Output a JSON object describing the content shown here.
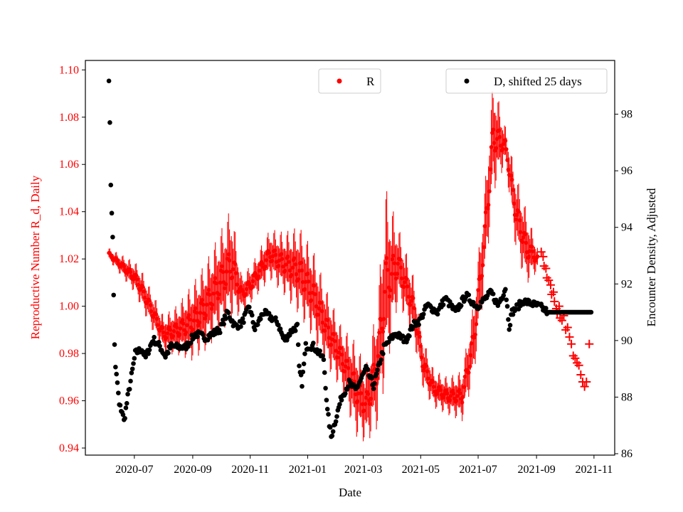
{
  "chart_data": {
    "type": "scatter",
    "xlabel": "Date",
    "ylabel_left": "Reproductive Number R_d, Daily",
    "ylabel_right": "Encounter Density, Adjusted",
    "x_origin": "2020-07-01",
    "x_units": "days since x_origin",
    "xlim_days": [
      -52,
      510
    ],
    "ylim_left": [
      0.937,
      1.104
    ],
    "ylim_right": [
      85.95,
      99.9
    ],
    "x_ticks": [
      {
        "label": "2020-07",
        "day": 0
      },
      {
        "label": "2020-09",
        "day": 62
      },
      {
        "label": "2020-11",
        "day": 123
      },
      {
        "label": "2021-01",
        "day": 184
      },
      {
        "label": "2021-03",
        "day": 243
      },
      {
        "label": "2021-05",
        "day": 304
      },
      {
        "label": "2021-07",
        "day": 365
      },
      {
        "label": "2021-09",
        "day": 427
      },
      {
        "label": "2021-11",
        "day": 488
      }
    ],
    "y_ticks_left": [
      "0.94",
      "0.96",
      "0.98",
      "1.00",
      "1.02",
      "1.04",
      "1.06",
      "1.08",
      "1.10"
    ],
    "y_ticks_right": [
      "86",
      "88",
      "90",
      "92",
      "94",
      "96",
      "98"
    ],
    "colors": {
      "R": "#ff0000",
      "D": "#000000",
      "left_axis": "#ff0000"
    },
    "legend": [
      {
        "label": "R",
        "position": "upper-center"
      },
      {
        "label": "D, shifted 25 days",
        "position": "upper-right"
      }
    ],
    "series_R": {
      "name": "R",
      "keypoints_day_value_halfwidth": [
        [
          -27,
          1.022,
          0.002
        ],
        [
          1,
          1.012,
          0.005
        ],
        [
          8,
          1.007,
          0.006
        ],
        [
          31,
          0.988,
          0.006
        ],
        [
          46,
          0.99,
          0.008
        ],
        [
          61,
          0.993,
          0.012
        ],
        [
          76,
          1.0,
          0.014
        ],
        [
          91,
          1.01,
          0.016
        ],
        [
          103,
          1.018,
          0.018
        ],
        [
          114,
          1.005,
          0.006
        ],
        [
          125,
          1.01,
          0.006
        ],
        [
          144,
          1.022,
          0.008
        ],
        [
          159,
          1.018,
          0.01
        ],
        [
          175,
          1.015,
          0.014
        ],
        [
          190,
          1.005,
          0.014
        ],
        [
          205,
          0.99,
          0.012
        ],
        [
          220,
          0.978,
          0.01
        ],
        [
          235,
          0.965,
          0.015
        ],
        [
          246,
          0.958,
          0.012
        ],
        [
          258,
          0.975,
          0.02
        ],
        [
          267,
          1.01,
          0.03
        ],
        [
          280,
          1.018,
          0.012
        ],
        [
          296,
          1.0,
          0.01
        ],
        [
          307,
          0.975,
          0.008
        ],
        [
          318,
          0.965,
          0.006
        ],
        [
          333,
          0.962,
          0.006
        ],
        [
          348,
          0.962,
          0.008
        ],
        [
          360,
          0.985,
          0.012
        ],
        [
          371,
          1.025,
          0.015
        ],
        [
          381,
          1.072,
          0.018
        ],
        [
          394,
          1.068,
          0.006
        ],
        [
          405,
          1.04,
          0.012
        ],
        [
          416,
          1.025,
          0.012
        ],
        [
          428,
          1.02,
          0.004
        ]
      ],
      "forecast_points_day_value": [
        [
          432,
          1.023
        ],
        [
          434,
          1.021
        ],
        [
          435,
          1.017
        ],
        [
          437,
          1.016
        ],
        [
          438,
          1.012
        ],
        [
          440,
          1.011
        ],
        [
          442,
          1.009
        ],
        [
          443,
          1.005
        ],
        [
          445,
          1.006
        ],
        [
          446,
          1.002
        ],
        [
          448,
          0.999
        ],
        [
          449,
          0.997
        ],
        [
          451,
          1.0
        ],
        [
          452,
          0.995
        ],
        [
          454,
          0.994
        ],
        [
          456,
          0.996
        ],
        [
          458,
          0.99
        ],
        [
          460,
          0.991
        ],
        [
          462,
          0.987
        ],
        [
          464,
          0.984
        ],
        [
          466,
          0.979
        ],
        [
          468,
          0.978
        ],
        [
          470,
          0.976
        ],
        [
          472,
          0.975
        ],
        [
          474,
          0.971
        ],
        [
          476,
          0.968
        ],
        [
          478,
          0.966
        ],
        [
          480,
          0.968
        ],
        [
          483,
          0.984
        ]
      ]
    },
    "series_D": {
      "name": "D, shifted 25 days",
      "keypoints_day_value": [
        [
          -27,
          99.3
        ],
        [
          -26,
          97.6
        ],
        [
          -25,
          95.55
        ],
        [
          -23,
          93.6
        ],
        [
          -22,
          91.6
        ],
        [
          -21,
          89.9
        ],
        [
          -20,
          89.0
        ],
        [
          -18,
          88.5
        ],
        [
          -16,
          87.7
        ],
        [
          -13,
          87.5
        ],
        [
          -11,
          87.15
        ],
        [
          -7,
          88.0
        ],
        [
          -3,
          88.75
        ],
        [
          1,
          89.55
        ],
        [
          8,
          89.7
        ],
        [
          12,
          89.4
        ],
        [
          20,
          90.05
        ],
        [
          27,
          89.8
        ],
        [
          33,
          89.45
        ],
        [
          39,
          89.8
        ],
        [
          54,
          89.75
        ],
        [
          65,
          90.25
        ],
        [
          76,
          90.1
        ],
        [
          91,
          90.4
        ],
        [
          99,
          91.0
        ],
        [
          107,
          90.5
        ],
        [
          114,
          90.6
        ],
        [
          122,
          91.2
        ],
        [
          128,
          90.4
        ],
        [
          137,
          91.0
        ],
        [
          152,
          90.65
        ],
        [
          159,
          90.0
        ],
        [
          167,
          90.35
        ],
        [
          173,
          90.5
        ],
        [
          175,
          89.0
        ],
        [
          178,
          88.5
        ],
        [
          182,
          89.8
        ],
        [
          190,
          89.8
        ],
        [
          201,
          89.35
        ],
        [
          205,
          87.5
        ],
        [
          209,
          86.6
        ],
        [
          216,
          87.5
        ],
        [
          220,
          88.0
        ],
        [
          228,
          88.5
        ],
        [
          235,
          88.25
        ],
        [
          246,
          89.0
        ],
        [
          254,
          88.4
        ],
        [
          258,
          88.9
        ],
        [
          265,
          89.75
        ],
        [
          277,
          90.25
        ],
        [
          288,
          90.0
        ],
        [
          296,
          90.55
        ],
        [
          303,
          90.7
        ],
        [
          311,
          91.25
        ],
        [
          322,
          91.0
        ],
        [
          330,
          91.5
        ],
        [
          341,
          91.0
        ],
        [
          352,
          91.6
        ],
        [
          364,
          91.2
        ],
        [
          379,
          91.7
        ],
        [
          386,
          91.25
        ],
        [
          394,
          91.85
        ],
        [
          398,
          90.5
        ],
        [
          401,
          91.0
        ],
        [
          413,
          91.4
        ],
        [
          431,
          91.2
        ],
        [
          439,
          91.0
        ],
        [
          485,
          91.0
        ]
      ]
    }
  }
}
